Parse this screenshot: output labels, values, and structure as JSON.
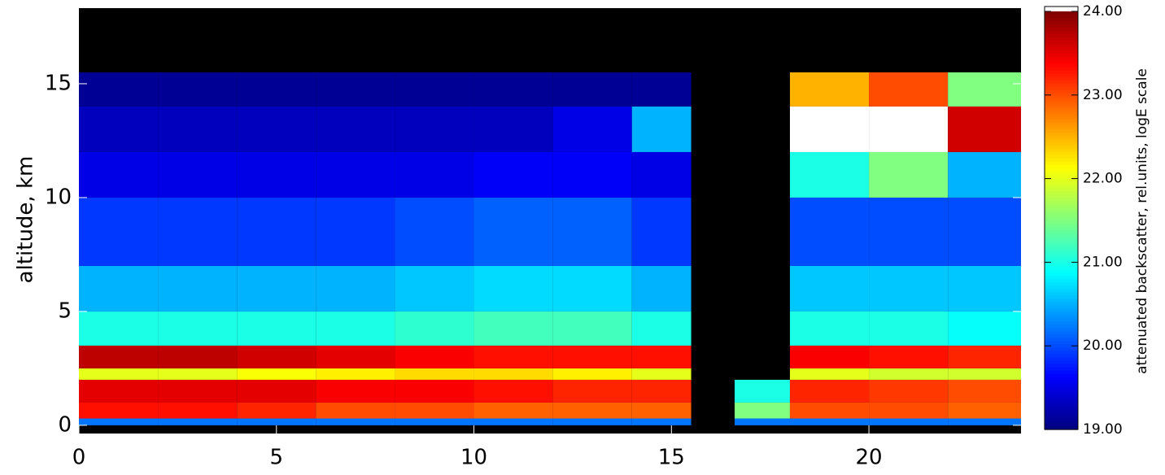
{
  "chart_data": {
    "type": "heatmap",
    "ylabel": "altitude, km",
    "colorbar_label": "attenuated backscatter, rel.units, logE scale",
    "xlim": [
      0,
      23.85
    ],
    "xticks": [
      0,
      5,
      10,
      15,
      20
    ],
    "ylim": [
      -0.36,
      18.32
    ],
    "yticks": [
      0,
      5,
      10,
      15
    ],
    "colormap": "jet",
    "over_color": "#ffffff",
    "background": "#000000",
    "zlim": [
      19,
      24
    ],
    "zticks": [
      {
        "value": 19,
        "label": "19.00"
      },
      {
        "value": 20,
        "label": "20.00"
      },
      {
        "value": 21,
        "label": "21.00"
      },
      {
        "value": 22,
        "label": "22.00"
      },
      {
        "value": 23,
        "label": "23.00"
      },
      {
        "value": 24,
        "label": "24.00"
      }
    ],
    "xbins": [
      0,
      2,
      4,
      6,
      8,
      10,
      12,
      14,
      15.5,
      16.6,
      18,
      20,
      22,
      23.85
    ],
    "ybins": [
      0,
      0.3,
      1,
      2,
      2.5,
      3.5,
      5,
      7,
      10,
      12,
      14,
      15.5
    ],
    "z": [
      [
        20.2,
        20.2,
        20.2,
        20.2,
        20.2,
        20.2,
        20.2,
        20.2,
        null,
        20.2,
        20.2,
        20.2,
        20.2
      ],
      [
        23.3,
        23.3,
        23.2,
        23.0,
        23.0,
        22.9,
        22.9,
        22.9,
        null,
        21.5,
        23.0,
        23.0,
        22.9
      ],
      [
        23.5,
        23.5,
        23.5,
        23.4,
        23.4,
        23.3,
        23.2,
        23.2,
        null,
        21.0,
        23.2,
        23.1,
        23.0
      ],
      [
        22.0,
        22.0,
        22.1,
        22.2,
        22.3,
        22.3,
        22.2,
        22.0,
        null,
        null,
        22.0,
        21.9,
        21.9
      ],
      [
        23.7,
        23.7,
        23.6,
        23.5,
        23.4,
        23.3,
        23.3,
        23.3,
        null,
        null,
        23.4,
        23.3,
        23.2
      ],
      [
        21.0,
        21.0,
        21.0,
        21.0,
        21.1,
        21.2,
        21.2,
        21.0,
        null,
        null,
        21.0,
        21.0,
        20.9
      ],
      [
        20.5,
        20.5,
        20.5,
        20.5,
        20.6,
        20.7,
        20.7,
        20.5,
        null,
        null,
        20.6,
        20.6,
        20.6
      ],
      [
        19.9,
        19.9,
        19.9,
        19.9,
        20.0,
        20.1,
        20.1,
        19.9,
        null,
        null,
        20.0,
        20.0,
        20.0
      ],
      [
        19.5,
        19.5,
        19.5,
        19.5,
        19.5,
        19.6,
        19.6,
        19.5,
        null,
        null,
        21.0,
        21.5,
        20.5
      ],
      [
        19.3,
        19.3,
        19.3,
        19.3,
        19.3,
        19.3,
        19.5,
        20.5,
        null,
        null,
        24.3,
        24.2,
        23.6
      ],
      [
        19.1,
        19.1,
        19.1,
        19.1,
        19.1,
        19.1,
        19.1,
        19.1,
        null,
        null,
        22.5,
        23.0,
        21.5
      ]
    ]
  }
}
